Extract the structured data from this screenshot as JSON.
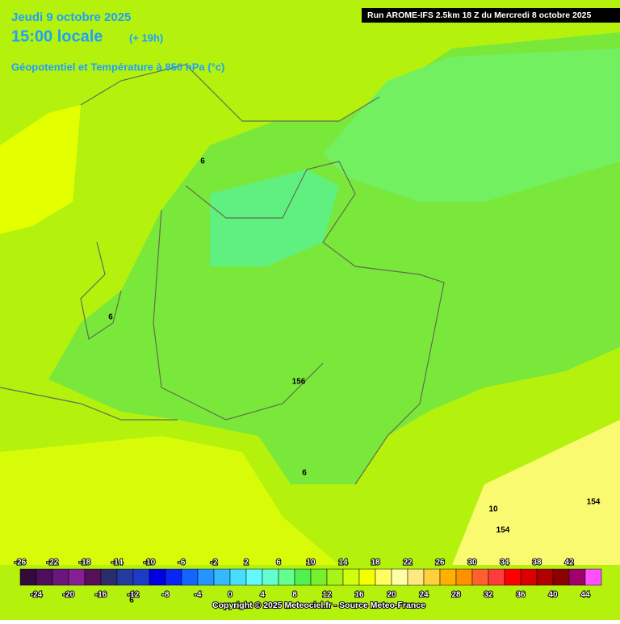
{
  "header": {
    "date": "Jeudi 9 octobre 2025",
    "time": "15:00 locale",
    "lead": "(+ 19h)",
    "field": "Géopotentiel et Température à 850 hPa (°c)",
    "run": "Run AROME-IFS 2.5km 18 Z du Mercredi 8 octobre 2025"
  },
  "map_labels": [
    "6",
    "6",
    "156",
    "6",
    "10",
    "154",
    "154",
    "6"
  ],
  "legend": {
    "ticks": [
      -26,
      -24,
      -22,
      -20,
      -18,
      -16,
      -14,
      -12,
      -10,
      -8,
      -6,
      -4,
      -2,
      0,
      2,
      4,
      6,
      8,
      10,
      12,
      14,
      16,
      18,
      20,
      22,
      24,
      26,
      28,
      30,
      32,
      34,
      36,
      38,
      40,
      42,
      44
    ],
    "colors": [
      "#320a3c",
      "#4e0e5c",
      "#6a167c",
      "#861e94",
      "#561058",
      "#2c2c6c",
      "#243aa0",
      "#1a3cc8",
      "#0000e0",
      "#0a24f4",
      "#1464ff",
      "#2494ff",
      "#34b8ff",
      "#48dcff",
      "#64f8ff",
      "#64ffd0",
      "#64ff90",
      "#50f050",
      "#78f030",
      "#a8f418",
      "#d0ff10",
      "#f4ff00",
      "#ffff64",
      "#ffffa8",
      "#ffe880",
      "#ffd040",
      "#ffb000",
      "#ff9000",
      "#ff6030",
      "#ff3c3c",
      "#ff0000",
      "#d80000",
      "#b00000",
      "#8c0000",
      "#a0006c",
      "#ff50ff"
    ]
  },
  "copyright": "Copyright © 2025 Meteociel.fr - Source Meteo-France"
}
